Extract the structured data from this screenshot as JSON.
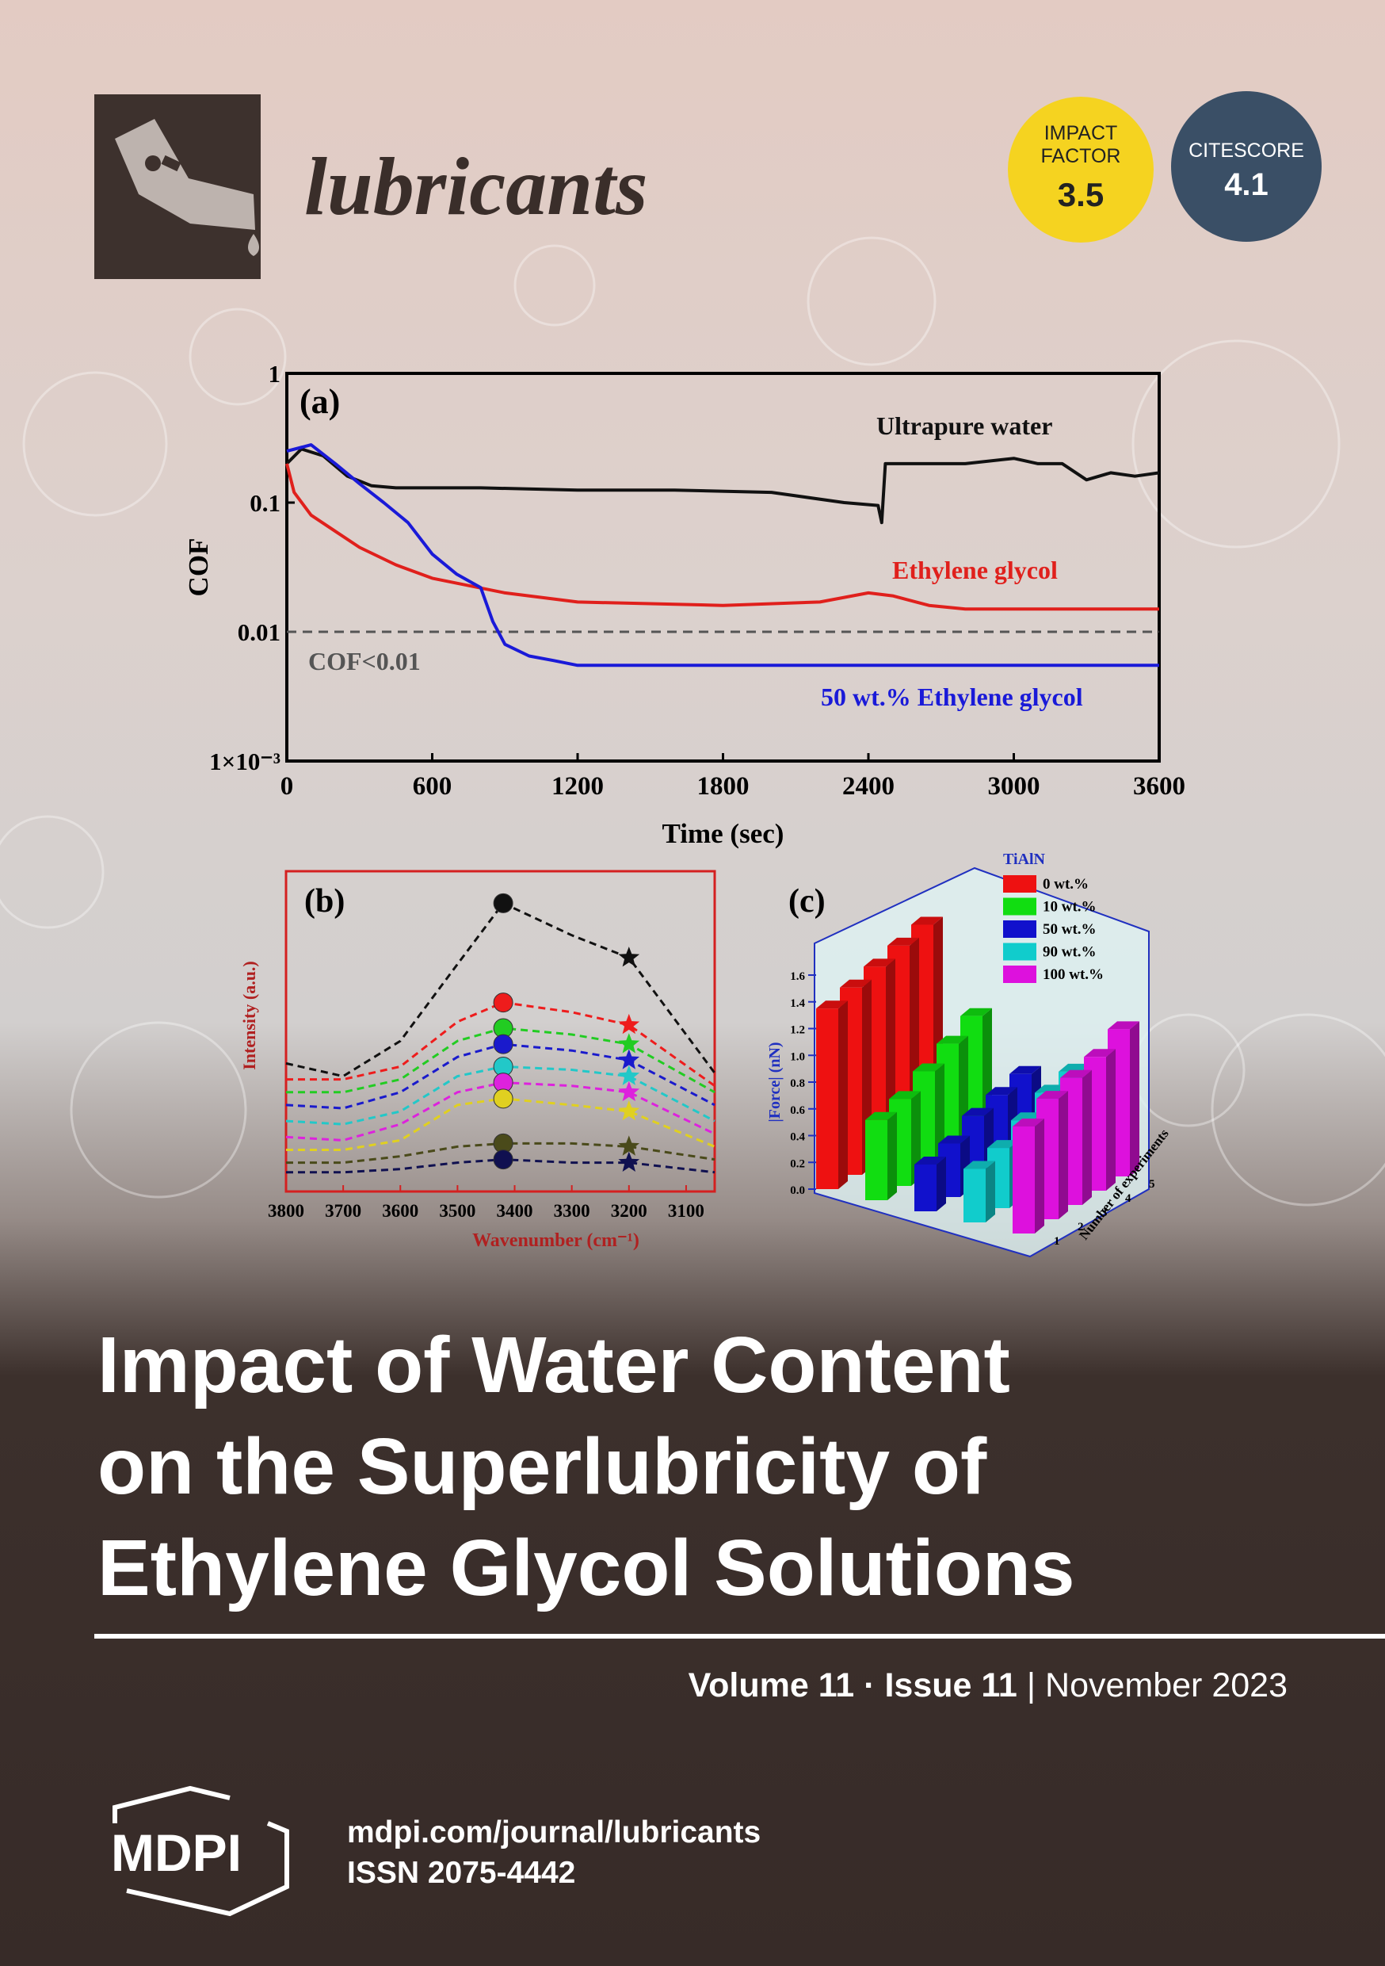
{
  "journal": "lubricants",
  "badges": [
    {
      "label": [
        "IMPACT",
        "FACTOR"
      ],
      "value": "3.5"
    },
    {
      "label": [
        "CITESCORE"
      ],
      "value": "4.1"
    }
  ],
  "chart_data": [
    {
      "type": "line",
      "panel_label": "(a)",
      "x_label": "Time (sec)",
      "y_label": "COF",
      "y_log": true,
      "xlim": [
        0,
        3600
      ],
      "xticks": [
        0,
        600,
        1200,
        1800,
        2400,
        3000,
        3600
      ],
      "ylim": [
        0.001,
        1
      ],
      "yticks": [
        {
          "value": 0.001,
          "label": "1×10⁻³"
        },
        0.01,
        0.1,
        1
      ],
      "threshold": {
        "value": 0.01,
        "label": "COF<0.01",
        "color": "#555555"
      },
      "series": [
        {
          "name": "Ultrapure water",
          "color": "#111111",
          "x": [
            0,
            60,
            150,
            250,
            350,
            450,
            800,
            1200,
            1600,
            2000,
            2300,
            2440,
            2455,
            2470,
            2600,
            2800,
            3000,
            3100,
            3200,
            3300,
            3400,
            3500,
            3600
          ],
          "values": [
            0.2,
            0.26,
            0.23,
            0.16,
            0.135,
            0.13,
            0.13,
            0.125,
            0.125,
            0.12,
            0.1,
            0.095,
            0.07,
            0.2,
            0.2,
            0.2,
            0.22,
            0.2,
            0.2,
            0.15,
            0.17,
            0.16,
            0.17
          ]
        },
        {
          "name": "Ethylene glycol",
          "color": "#e0201c",
          "x": [
            0,
            30,
            100,
            200,
            300,
            450,
            600,
            900,
            1200,
            1800,
            2200,
            2400,
            2500,
            2650,
            2800,
            3200,
            3600
          ],
          "values": [
            0.2,
            0.12,
            0.08,
            0.06,
            0.045,
            0.033,
            0.026,
            0.02,
            0.017,
            0.016,
            0.017,
            0.02,
            0.019,
            0.016,
            0.015,
            0.015,
            0.015
          ]
        },
        {
          "name": "50 wt.% Ethylene glycol",
          "color": "#1a1ad8",
          "x": [
            0,
            100,
            200,
            300,
            400,
            500,
            600,
            700,
            800,
            850,
            900,
            1000,
            1100,
            1200,
            1800,
            2400,
            3000,
            3600
          ],
          "values": [
            0.25,
            0.28,
            0.2,
            0.14,
            0.1,
            0.07,
            0.04,
            0.028,
            0.022,
            0.012,
            0.008,
            0.0065,
            0.006,
            0.0055,
            0.0055,
            0.0055,
            0.0055,
            0.0055
          ]
        }
      ]
    },
    {
      "type": "line",
      "panel_label": "(b)",
      "x_label": "Wavenumber (cm⁻¹)",
      "y_label": "Intensity (a.u.)",
      "xlim": [
        3800,
        3050
      ],
      "xticks": [
        3800,
        3700,
        3600,
        3500,
        3400,
        3300,
        3200,
        3100
      ],
      "ylim": [
        0,
        10
      ],
      "x": [
        3800,
        3700,
        3600,
        3500,
        3420,
        3300,
        3200,
        3050
      ],
      "series": [
        {
          "color": "#111111",
          "values": [
            4.0,
            3.6,
            4.7,
            7.1,
            9.0,
            8.0,
            7.3,
            3.7
          ]
        },
        {
          "color": "#ee1c1c",
          "values": [
            3.5,
            3.5,
            3.9,
            5.3,
            5.9,
            5.6,
            5.2,
            3.3
          ]
        },
        {
          "color": "#22cc22",
          "values": [
            3.1,
            3.1,
            3.5,
            4.7,
            5.1,
            4.9,
            4.6,
            3.1
          ]
        },
        {
          "color": "#1a1acc",
          "values": [
            2.7,
            2.6,
            3.1,
            4.2,
            4.6,
            4.4,
            4.1,
            2.7
          ]
        },
        {
          "color": "#22c8c8",
          "values": [
            2.2,
            2.1,
            2.5,
            3.6,
            3.9,
            3.8,
            3.6,
            2.2
          ]
        },
        {
          "color": "#dd22dd",
          "values": [
            1.7,
            1.6,
            2.1,
            3.1,
            3.4,
            3.3,
            3.1,
            1.8
          ]
        },
        {
          "color": "#e0d020",
          "values": [
            1.3,
            1.3,
            1.6,
            2.7,
            2.9,
            2.7,
            2.5,
            1.4
          ]
        },
        {
          "color": "#4a4a1a",
          "values": [
            0.9,
            0.9,
            1.1,
            1.4,
            1.5,
            1.5,
            1.4,
            1.0
          ]
        },
        {
          "color": "#101050",
          "values": [
            0.6,
            0.6,
            0.7,
            0.9,
            1.0,
            0.9,
            0.9,
            0.6
          ]
        }
      ]
    },
    {
      "type": "bar3d",
      "panel_label": "(c)",
      "legend_title": "TiAlN",
      "y_label": "|Force| (nN)",
      "z_label": "Number of experiments",
      "ylim": [
        0,
        1.6
      ],
      "yticks": [
        {
          "value": 0,
          "label": "0.0"
        },
        0.2,
        0.4,
        0.6,
        0.8,
        {
          "value": 1,
          "label": "1.0"
        },
        1.2,
        1.4,
        1.6
      ],
      "zticks": [
        1,
        2,
        3,
        4,
        5
      ],
      "series": [
        {
          "name": "0 wt.%",
          "color": "#ee1111",
          "values": [
            1.35,
            1.4,
            1.45,
            1.5,
            1.55
          ]
        },
        {
          "name": "10 wt.%",
          "color": "#11dd11",
          "values": [
            0.6,
            0.65,
            0.75,
            0.85,
            0.95
          ]
        },
        {
          "name": "50 wt.%",
          "color": "#1111cc",
          "values": [
            0.35,
            0.4,
            0.5,
            0.55,
            0.6
          ]
        },
        {
          "name": "90 wt.%",
          "color": "#11cccc",
          "values": [
            0.4,
            0.45,
            0.55,
            0.65,
            0.7
          ]
        },
        {
          "name": "100 wt.%",
          "color": "#dd11dd",
          "values": [
            0.8,
            0.9,
            0.95,
            1.0,
            1.1
          ]
        }
      ]
    }
  ],
  "cover_title": [
    "Impact of Water Content",
    "on the Superlubricity of",
    "Ethylene Glycol Solutions"
  ],
  "issue_line": {
    "volume": "Volume 11",
    "separator": "·",
    "issue": "Issue 11",
    "divider": "|",
    "date": "November 2023"
  },
  "footer": {
    "publisher": "MDPI",
    "url": "mdpi.com/journal/lubricants",
    "issn": "ISSN 2075-4442"
  }
}
